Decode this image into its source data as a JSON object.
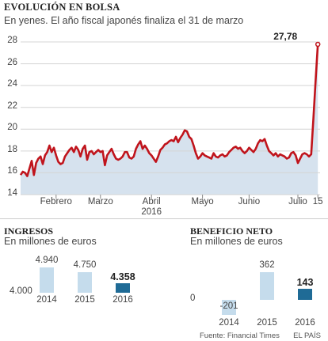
{
  "header": {
    "title": "EVOLUCIÓN EN BOLSA",
    "subtitle": "En yenes. El año fiscal japonés finaliza el 31 de marzo"
  },
  "colors": {
    "line": "#c0141c",
    "area": "#d6e2ee",
    "bar_light": "#c5dcec",
    "bar_dark": "#1f6b96",
    "grid": "#d4d4d4"
  },
  "chart_data": [
    {
      "type": "line",
      "title": "EVOLUCIÓN EN BOLSA",
      "subtitle": "En yenes. El año fiscal japonés finaliza el 31 de marzo",
      "ylim": [
        14,
        28
      ],
      "yticks": [
        14,
        16,
        18,
        20,
        22,
        24,
        26,
        28
      ],
      "xlim": [
        0,
        135
      ],
      "xticks": [
        {
          "x": 16,
          "label": "Febrero"
        },
        {
          "x": 36,
          "label": "Marzo"
        },
        {
          "x": 59,
          "label": "Abril",
          "sublabel": "2016"
        },
        {
          "x": 82,
          "label": "Mayo"
        },
        {
          "x": 103,
          "label": "Junio"
        },
        {
          "x": 125,
          "label": "Julio"
        },
        {
          "x": 134,
          "label": "15"
        }
      ],
      "grid": true,
      "end_label": "27,78",
      "series": [
        {
          "x": [
            0,
            1,
            2,
            3,
            4,
            5,
            6,
            7,
            8,
            9,
            10,
            11,
            12,
            13,
            14,
            15,
            16,
            17,
            18,
            19,
            20,
            21,
            22,
            23,
            24,
            25,
            26,
            27,
            28,
            29,
            30,
            31,
            32,
            33,
            34,
            35,
            36,
            37,
            38,
            39,
            40,
            41,
            42,
            43,
            44,
            45,
            46,
            47,
            48,
            49,
            50,
            51,
            52,
            53,
            54,
            55,
            56,
            57,
            58,
            59,
            60,
            61,
            62,
            63,
            64,
            65,
            66,
            67,
            68,
            69,
            70,
            71,
            72,
            73,
            74,
            75,
            76,
            77,
            78,
            79,
            80,
            81,
            82,
            83,
            84,
            85,
            86,
            87,
            88,
            89,
            90,
            91,
            92,
            93,
            94,
            95,
            96,
            97,
            98,
            99,
            100,
            101,
            102,
            103,
            104,
            105,
            106,
            107,
            108,
            109,
            110,
            111,
            112,
            113,
            114,
            115,
            116,
            117,
            118,
            119,
            120,
            121,
            122,
            123,
            124,
            125,
            126,
            127,
            128,
            129,
            130,
            131,
            132,
            133,
            134
          ],
          "values": [
            15.8,
            16.1,
            16.0,
            15.7,
            16.4,
            17.1,
            15.8,
            16.9,
            17.3,
            17.5,
            16.8,
            17.6,
            17.9,
            18.5,
            17.9,
            18.3,
            17.6,
            17.0,
            16.8,
            16.9,
            17.5,
            17.8,
            18.1,
            18.3,
            17.9,
            18.4,
            18.1,
            17.5,
            18.2,
            18.5,
            17.2,
            17.9,
            18.0,
            17.7,
            17.9,
            18.1,
            17.9,
            18.0,
            16.7,
            17.6,
            17.9,
            18.2,
            17.7,
            17.3,
            17.2,
            17.3,
            17.5,
            17.9,
            17.9,
            17.4,
            17.3,
            17.5,
            18.2,
            18.6,
            18.9,
            18.2,
            18.5,
            18.2,
            17.8,
            17.6,
            17.3,
            17.0,
            17.5,
            18.1,
            18.3,
            18.6,
            18.7,
            18.9,
            19.0,
            18.9,
            19.3,
            18.8,
            19.2,
            19.5,
            19.9,
            19.8,
            19.3,
            19.1,
            18.5,
            17.8,
            17.3,
            17.5,
            17.8,
            17.6,
            17.5,
            17.4,
            17.3,
            17.8,
            17.5,
            17.4,
            17.6,
            17.7,
            17.5,
            17.6,
            17.9,
            18.1,
            18.3,
            18.4,
            18.2,
            18.3,
            18.0,
            17.8,
            18.0,
            18.3,
            18.1,
            17.9,
            18.2,
            18.7,
            19.0,
            18.9,
            19.1,
            18.5,
            18.0,
            17.8,
            17.6,
            17.8,
            17.5,
            17.7,
            17.6,
            17.5,
            17.3,
            17.4,
            17.8,
            17.9,
            17.6,
            16.9,
            17.3,
            17.7,
            17.8,
            17.7,
            17.5,
            17.7,
            21.0,
            24.5,
            27.78
          ]
        }
      ]
    },
    {
      "type": "bar",
      "title": "INGRESOS",
      "subtitle": "En millones de euros",
      "categories": [
        "2014",
        "2015",
        "2016"
      ],
      "values": [
        4940,
        4750,
        4358
      ],
      "value_labels": [
        "4.940",
        "4.750",
        "4.358"
      ],
      "baseline": 4000,
      "baseline_label": "4.000",
      "ylim": [
        4000,
        4940
      ]
    },
    {
      "type": "bar",
      "title": "BENEFICIO NETO",
      "subtitle": "En millones de euros",
      "categories": [
        "2014",
        "2015",
        "2016"
      ],
      "values": [
        -201,
        362,
        143
      ],
      "value_labels": [
        "-201",
        "362",
        "143"
      ],
      "baseline": 0,
      "baseline_label": "0",
      "ylim": [
        -201,
        362
      ]
    }
  ],
  "footer": {
    "source": "Fuente: Financial Times",
    "brand": "EL PAÍS"
  }
}
